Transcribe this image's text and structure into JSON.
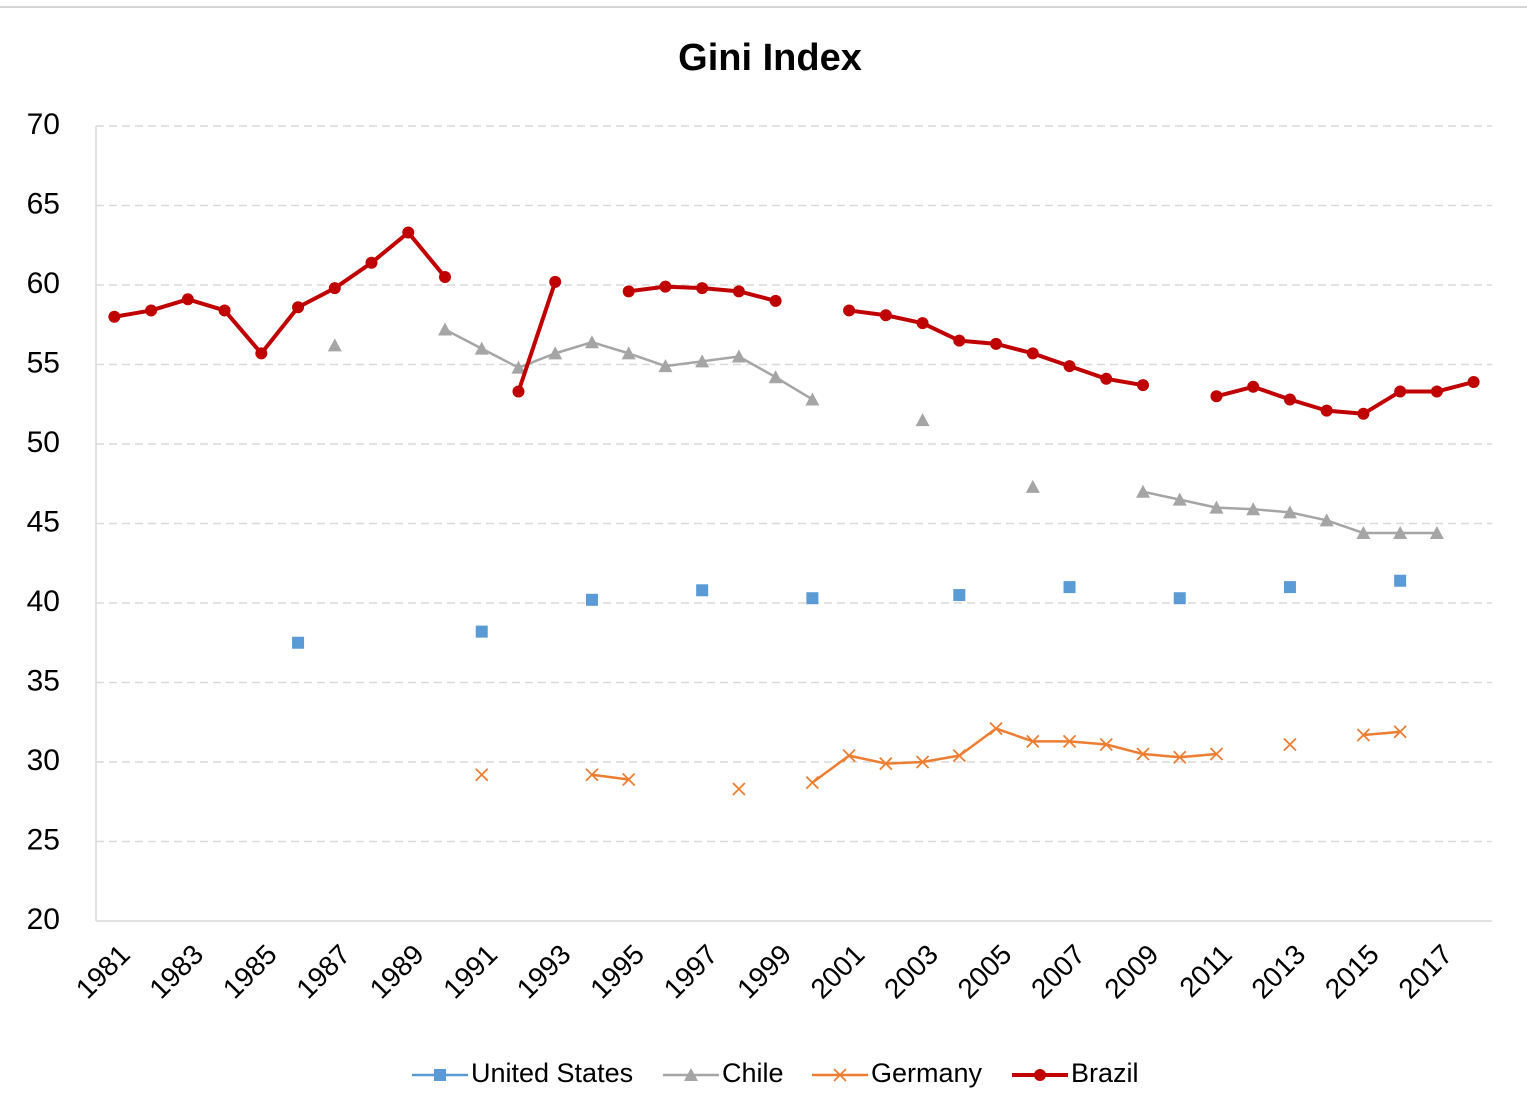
{
  "chart_data": {
    "type": "line",
    "title": "Gini Index",
    "categories": [
      "1981",
      null,
      "1983",
      null,
      "1985",
      null,
      "1987",
      null,
      "1989",
      null,
      "1991",
      null,
      "1993",
      null,
      "1995",
      null,
      "1997",
      null,
      "1999",
      null,
      "2001",
      null,
      "2003",
      null,
      "2005",
      null,
      "2007",
      null,
      "2009",
      null,
      "2011",
      null,
      "2013",
      null,
      "2015",
      null,
      "2017",
      null
    ],
    "series": [
      {
        "name": "United States",
        "color": "#5b9bd5",
        "marker": "square",
        "values": [
          null,
          null,
          null,
          null,
          null,
          37.5,
          null,
          null,
          null,
          null,
          38.2,
          null,
          null,
          40.2,
          null,
          null,
          40.8,
          null,
          null,
          40.3,
          null,
          null,
          null,
          40.5,
          null,
          null,
          41.0,
          null,
          null,
          40.3,
          null,
          null,
          41.0,
          null,
          null,
          41.4,
          null,
          null
        ]
      },
      {
        "name": "Chile",
        "color": "#a5a5a5",
        "marker": "triangle",
        "values": [
          null,
          null,
          null,
          null,
          null,
          null,
          56.2,
          null,
          null,
          57.2,
          56.0,
          54.8,
          55.7,
          56.4,
          55.7,
          54.9,
          55.2,
          55.5,
          54.2,
          52.8,
          null,
          null,
          51.5,
          null,
          null,
          47.3,
          null,
          null,
          47.0,
          46.5,
          46.0,
          45.9,
          45.7,
          45.2,
          44.4,
          44.4,
          44.4,
          null
        ]
      },
      {
        "name": "Germany",
        "color": "#ed7d31",
        "marker": "x",
        "values": [
          null,
          null,
          null,
          null,
          null,
          null,
          null,
          null,
          null,
          null,
          29.2,
          null,
          null,
          29.2,
          28.9,
          null,
          null,
          28.3,
          null,
          28.7,
          30.4,
          29.9,
          30.0,
          30.4,
          32.1,
          31.3,
          31.3,
          31.1,
          30.5,
          30.3,
          30.5,
          null,
          31.1,
          null,
          31.7,
          31.9,
          null,
          null
        ]
      },
      {
        "name": "Brazil",
        "color": "#c00000",
        "marker": "circle",
        "values": [
          58.0,
          58.4,
          59.1,
          58.4,
          55.7,
          58.6,
          59.8,
          61.4,
          63.3,
          60.5,
          null,
          53.3,
          60.2,
          null,
          59.6,
          59.9,
          59.8,
          59.6,
          59.0,
          null,
          58.4,
          58.1,
          57.6,
          56.5,
          56.3,
          55.7,
          54.9,
          54.1,
          53.7,
          null,
          53.0,
          53.6,
          52.8,
          52.1,
          51.9,
          53.3,
          53.3,
          53.9
        ]
      }
    ],
    "ylim": [
      20,
      70
    ],
    "yticks": [
      20,
      25,
      30,
      35,
      40,
      45,
      50,
      55,
      60,
      65,
      70
    ],
    "grid": true,
    "legend": "bottom"
  }
}
